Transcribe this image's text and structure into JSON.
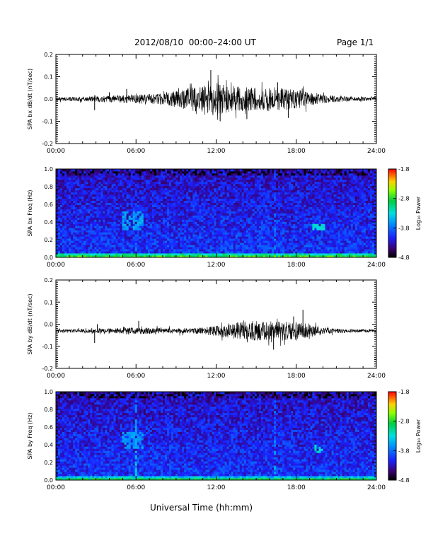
{
  "header": {
    "title": "2012/08/10  00:00–24:00 UT",
    "page_label": "Page 1/1"
  },
  "xlabel": "Universal Time (hh:mm)",
  "colorbar": {
    "label": "Log₁₀ Power",
    "ticks": [
      "-1.8",
      "-2.8",
      "-3.8",
      "-4.8"
    ],
    "range": [
      -4.8,
      -1.8
    ]
  },
  "chart_data": [
    {
      "type": "line",
      "ylabel": "SPA bx dB/dt (nT/sec)",
      "xlim": [
        "00:00",
        "24:00"
      ],
      "ylim": [
        -0.2,
        0.2
      ],
      "x_ticks": [
        "00:00",
        "06:00",
        "12:00",
        "18:00",
        "24:00"
      ],
      "y_ticks": [
        "0.2",
        "0.1",
        "0.0",
        "-0.1",
        "-0.2"
      ],
      "baseline": 0.0,
      "envelope": {
        "hours": [
          0,
          2,
          4,
          6,
          8,
          10,
          11,
          12,
          13,
          14,
          15,
          16,
          17,
          18,
          19,
          20,
          21,
          22,
          24
        ],
        "amplitude": [
          0.008,
          0.01,
          0.015,
          0.02,
          0.025,
          0.05,
          0.06,
          0.07,
          0.06,
          0.055,
          0.05,
          0.055,
          0.05,
          0.045,
          0.03,
          0.02,
          0.015,
          0.01,
          0.008
        ]
      },
      "spikes": [
        [
          2.9,
          -0.05
        ],
        [
          4.0,
          0.03
        ],
        [
          5.3,
          0.045
        ],
        [
          11.6,
          0.13
        ],
        [
          12.3,
          -0.1
        ],
        [
          14.3,
          -0.09
        ],
        [
          16.6,
          0.075
        ],
        [
          17.4,
          -0.085
        ]
      ]
    },
    {
      "type": "heatmap",
      "ylabel": "SPA bx Freq (Hz)",
      "xlim": [
        "00:00",
        "24:00"
      ],
      "ylim": [
        0.0,
        1.0
      ],
      "x_ticks": [
        "00:00",
        "06:00",
        "12:00",
        "18:00",
        "24:00"
      ],
      "y_ticks": [
        "1.0",
        "0.8",
        "0.6",
        "0.4",
        "0.2",
        "0.0"
      ],
      "zlim": [
        -4.8,
        -1.8
      ],
      "features": [
        {
          "kind": "low-frequency band",
          "freq_max": 0.05,
          "log_power": -2.6
        },
        {
          "kind": "blob",
          "hours": [
            5.0,
            6.6
          ],
          "freq": [
            0.3,
            0.52
          ],
          "log_power": -3.6
        },
        {
          "kind": "blob",
          "hours": [
            19.2,
            20.2
          ],
          "freq": [
            0.32,
            0.38
          ],
          "log_power": -3.3
        },
        {
          "kind": "streak",
          "hour": 6.0,
          "log_power": -3.8
        },
        {
          "kind": "streak",
          "hour": 15.4,
          "log_power": -3.8
        },
        {
          "kind": "streak",
          "hour": 16.4,
          "log_power": -3.7
        }
      ]
    },
    {
      "type": "line",
      "ylabel": "SPA by dB/dt (nT/sec)",
      "xlim": [
        "00:00",
        "24:00"
      ],
      "ylim": [
        -0.2,
        0.2
      ],
      "x_ticks": [
        "00:00",
        "06:00",
        "12:00",
        "18:00",
        "24:00"
      ],
      "y_ticks": [
        "0.2",
        "0.1",
        "0.0",
        "-0.1",
        "-0.2"
      ],
      "baseline": -0.03,
      "envelope": {
        "hours": [
          0,
          2,
          4,
          6,
          8,
          10,
          11,
          12,
          13,
          14,
          15,
          16,
          17,
          18,
          19,
          20,
          21,
          22,
          24
        ],
        "amplitude": [
          0.006,
          0.008,
          0.01,
          0.015,
          0.012,
          0.012,
          0.015,
          0.025,
          0.035,
          0.04,
          0.045,
          0.04,
          0.045,
          0.04,
          0.03,
          0.015,
          0.01,
          0.008,
          0.006
        ]
      },
      "spikes": [
        [
          2.9,
          -0.085
        ],
        [
          3.1,
          0.0
        ],
        [
          6.2,
          0.015
        ],
        [
          16.3,
          -0.115
        ],
        [
          18.5,
          0.065
        ],
        [
          17.8,
          0.035
        ]
      ]
    },
    {
      "type": "heatmap",
      "ylabel": "SPA by Freq (Hz)",
      "xlim": [
        "00:00",
        "24:00"
      ],
      "ylim": [
        0.0,
        1.0
      ],
      "x_ticks": [
        "00:00",
        "06:00",
        "12:00",
        "18:00",
        "24:00"
      ],
      "y_ticks": [
        "1.0",
        "0.8",
        "0.6",
        "0.4",
        "0.2",
        "0.0"
      ],
      "zlim": [
        -4.8,
        -1.8
      ],
      "features": [
        {
          "kind": "low-frequency band",
          "freq_max": 0.04,
          "log_power": -2.7
        },
        {
          "kind": "blob",
          "hours": [
            5.0,
            6.5
          ],
          "freq": [
            0.35,
            0.55
          ],
          "log_power": -3.6
        },
        {
          "kind": "blob",
          "hours": [
            19.4,
            20.0
          ],
          "freq": [
            0.32,
            0.4
          ],
          "log_power": -3.3
        },
        {
          "kind": "streak",
          "hour": 6.0,
          "log_power": -3.4
        },
        {
          "kind": "streak",
          "hour": 16.4,
          "log_power": -3.6
        }
      ]
    }
  ]
}
